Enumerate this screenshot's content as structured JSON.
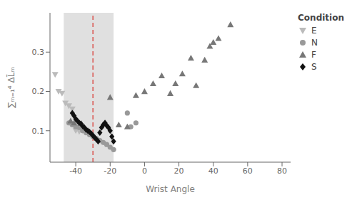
{
  "chart_data": {
    "type": "scatter",
    "xlabel": "Wrist Angle",
    "ylabel": "∑ₘ₌₁⁴ ΔL̄ₘ",
    "xlim": [
      -55,
      85
    ],
    "ylim": [
      0.02,
      0.4
    ],
    "xticks": [
      -40,
      -20,
      0,
      20,
      40,
      60,
      80
    ],
    "yticks": [
      0.1,
      0.2,
      0.3
    ],
    "grid": false,
    "legend": "upper right",
    "legend_title": "Condition",
    "bands": [
      {
        "x": [
          -47,
          -18
        ],
        "color": "#e0e0e0"
      }
    ],
    "vlines": [
      {
        "x": -30,
        "color": "#d9534f",
        "line_style": "dashed"
      }
    ],
    "series": [
      {
        "name": "E",
        "color": "#bbbbbb",
        "marker": "triangle-down",
        "values": [
          [
            -52,
            0.243
          ],
          [
            -50,
            0.2
          ],
          [
            -48,
            0.195
          ],
          [
            -46,
            0.17
          ],
          [
            -44,
            0.163
          ],
          [
            -42,
            0.155
          ],
          [
            -40,
            0.1
          ],
          [
            -38,
            0.098
          ]
        ]
      },
      {
        "name": "N",
        "color": "#999999",
        "marker": "circle",
        "values": [
          [
            -44,
            0.12
          ],
          [
            -42,
            0.115
          ],
          [
            -40,
            0.11
          ],
          [
            -38,
            0.108
          ],
          [
            -36,
            0.1
          ],
          [
            -34,
            0.095
          ],
          [
            -32,
            0.09
          ],
          [
            -30,
            0.085
          ],
          [
            -28,
            0.08
          ],
          [
            -26,
            0.075
          ],
          [
            -24,
            0.07
          ],
          [
            -22,
            0.065
          ],
          [
            -20,
            0.058
          ],
          [
            -18,
            0.052
          ],
          [
            -10,
            0.145
          ],
          [
            -8,
            0.11
          ],
          [
            -5,
            0.12
          ]
        ]
      },
      {
        "name": "F",
        "color": "#777777",
        "marker": "triangle",
        "values": [
          [
            -43,
            0.125
          ],
          [
            -41,
            0.12
          ],
          [
            -20,
            0.185
          ],
          [
            -15,
            0.115
          ],
          [
            -10,
            0.11
          ],
          [
            -5,
            0.19
          ],
          [
            0,
            0.2
          ],
          [
            5,
            0.22
          ],
          [
            10,
            0.24
          ],
          [
            15,
            0.195
          ],
          [
            18,
            0.22
          ],
          [
            22,
            0.245
          ],
          [
            27,
            0.285
          ],
          [
            30,
            0.215
          ],
          [
            35,
            0.28
          ],
          [
            38,
            0.315
          ],
          [
            40,
            0.325
          ],
          [
            43,
            0.335
          ],
          [
            50,
            0.37
          ]
        ]
      },
      {
        "name": "S",
        "color": "#111111",
        "marker": "diamond",
        "values": [
          [
            -42,
            0.145
          ],
          [
            -41,
            0.138
          ],
          [
            -40,
            0.13
          ],
          [
            -39,
            0.125
          ],
          [
            -38,
            0.12
          ],
          [
            -37,
            0.118
          ],
          [
            -36,
            0.112
          ],
          [
            -35,
            0.108
          ],
          [
            -34,
            0.103
          ],
          [
            -33,
            0.1
          ],
          [
            -32,
            0.097
          ],
          [
            -31,
            0.093
          ],
          [
            -30,
            0.088
          ],
          [
            -29,
            0.083
          ],
          [
            -28,
            0.078
          ],
          [
            -27,
            0.073
          ],
          [
            -26,
            0.095
          ],
          [
            -25,
            0.108
          ],
          [
            -24,
            0.115
          ],
          [
            -23,
            0.12
          ],
          [
            -22,
            0.113
          ],
          [
            -21,
            0.108
          ],
          [
            -20,
            0.1
          ],
          [
            -19,
            0.085
          ],
          [
            -18,
            0.073
          ]
        ]
      }
    ]
  }
}
